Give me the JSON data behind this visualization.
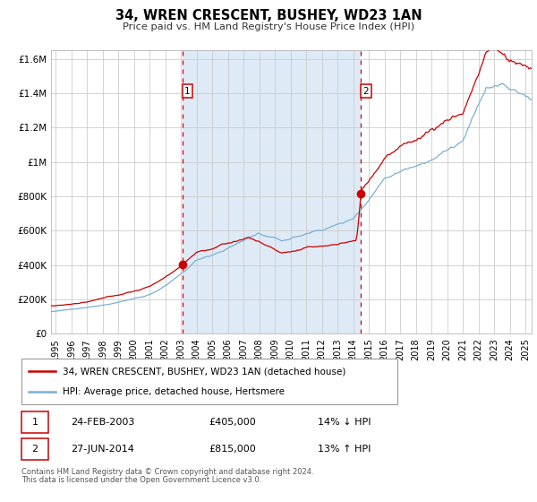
{
  "title": "34, WREN CRESCENT, BUSHEY, WD23 1AN",
  "subtitle": "Price paid vs. HM Land Registry's House Price Index (HPI)",
  "legend_line1": "34, WREN CRESCENT, BUSHEY, WD23 1AN (detached house)",
  "legend_line2": "HPI: Average price, detached house, Hertsmere",
  "footer1": "Contains HM Land Registry data © Crown copyright and database right 2024.",
  "footer2": "This data is licensed under the Open Government Licence v3.0.",
  "annotation1_date": "24-FEB-2003",
  "annotation1_price": "£405,000",
  "annotation1_hpi": "14% ↓ HPI",
  "annotation2_date": "27-JUN-2014",
  "annotation2_price": "£815,000",
  "annotation2_hpi": "13% ↑ HPI",
  "red_color": "#cc0000",
  "blue_color": "#7ab0d4",
  "bg_shaded": "#deeaf5",
  "grid_color": "#cccccc",
  "ylim": [
    0,
    1650000
  ],
  "yticks": [
    0,
    200000,
    400000,
    600000,
    800000,
    1000000,
    1200000,
    1400000,
    1600000
  ],
  "ytick_labels": [
    "£0",
    "£200K",
    "£400K",
    "£600K",
    "£800K",
    "£1M",
    "£1.2M",
    "£1.4M",
    "£1.6M"
  ],
  "purchase1_year": 2003.12,
  "purchase1_value": 405000,
  "purchase2_year": 2014.5,
  "purchase2_value": 815000,
  "xstart": 1994.7,
  "xend": 2025.4,
  "xtick_start": 1995,
  "xtick_end": 2025
}
